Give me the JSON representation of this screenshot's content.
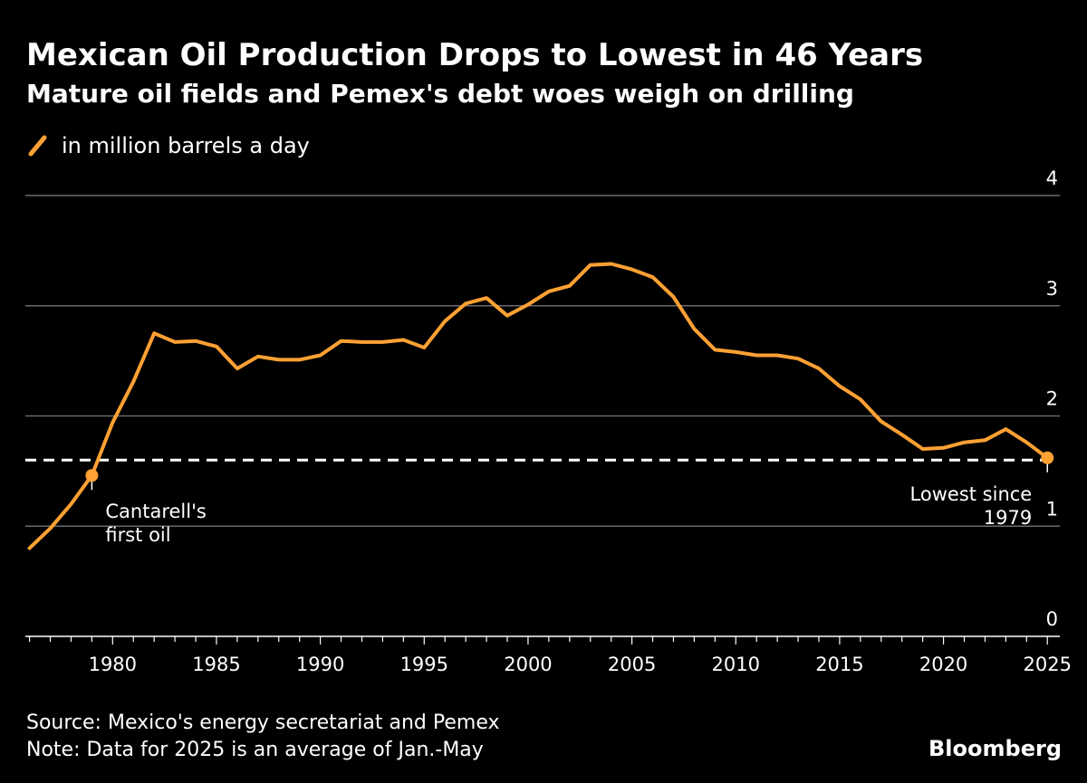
{
  "header": {
    "title": "Mexican Oil Production Drops to Lowest in 46 Years",
    "subtitle": "Mature oil fields and Pemex's debt woes weigh on drilling"
  },
  "legend": {
    "label": "in million barrels a day",
    "icon": "line-swatch-icon"
  },
  "colors": {
    "background": "#000000",
    "series": "#ffa133",
    "grid": "#6a6a6a",
    "axis": "#ffffff",
    "text": "#ffffff",
    "reference_line": "#ffffff"
  },
  "chart_data": {
    "type": "line",
    "title": "Mexican Oil Production Drops to Lowest in 46 Years",
    "subtitle": "Mature oil fields and Pemex's debt woes weigh on drilling",
    "xlabel": "",
    "ylabel": "",
    "xlim": [
      1975.8,
      2025.6
    ],
    "ylim": [
      0,
      4
    ],
    "y_axis_side": "right",
    "yticks": [
      0,
      1,
      2,
      3,
      4
    ],
    "xticks": [
      1980,
      1985,
      1990,
      1995,
      2000,
      2005,
      2010,
      2015,
      2020,
      2025
    ],
    "grid": true,
    "legend_position": "top-left",
    "series": [
      {
        "name": "in million barrels a day",
        "color": "#ffa133",
        "x": [
          1976,
          1977,
          1978,
          1979,
          1980,
          1981,
          1982,
          1983,
          1984,
          1985,
          1986,
          1987,
          1988,
          1989,
          1990,
          1991,
          1992,
          1993,
          1994,
          1995,
          1996,
          1997,
          1998,
          1999,
          2000,
          2001,
          2002,
          2003,
          2004,
          2005,
          2006,
          2007,
          2008,
          2009,
          2010,
          2011,
          2012,
          2013,
          2014,
          2015,
          2016,
          2017,
          2018,
          2019,
          2020,
          2021,
          2022,
          2023,
          2024,
          2025
        ],
        "values": [
          0.8,
          0.98,
          1.2,
          1.46,
          1.94,
          2.31,
          2.75,
          2.67,
          2.68,
          2.63,
          2.43,
          2.54,
          2.51,
          2.51,
          2.55,
          2.68,
          2.67,
          2.67,
          2.69,
          2.62,
          2.86,
          3.02,
          3.07,
          2.91,
          3.01,
          3.13,
          3.18,
          3.37,
          3.38,
          3.33,
          3.26,
          3.08,
          2.79,
          2.6,
          2.58,
          2.55,
          2.55,
          2.52,
          2.43,
          2.27,
          2.15,
          1.95,
          1.83,
          1.7,
          1.71,
          1.76,
          1.78,
          1.88,
          1.76,
          1.62
        ]
      }
    ],
    "reference_line": {
      "y": 1.6,
      "style": "dashed"
    },
    "annotations": [
      {
        "x": 1979,
        "y": 1.46,
        "text_lines": [
          "Cantarell's",
          "first oil"
        ],
        "align": "left"
      },
      {
        "x": 2025,
        "y": 1.62,
        "text_lines": [
          "Lowest since",
          "1979"
        ],
        "align": "right"
      }
    ]
  },
  "footer": {
    "source": "Source: Mexico's energy secretariat and Pemex",
    "note": "Note: Data for 2025 is an average of Jan.-May",
    "brand": "Bloomberg"
  }
}
